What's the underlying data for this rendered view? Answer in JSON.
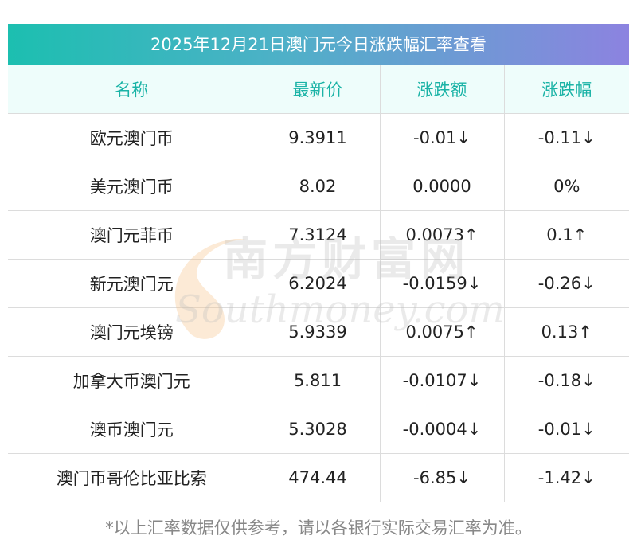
{
  "title": "2025年12月21日澳门元今日涨跌幅汇率查看",
  "columns": [
    "名称",
    "最新价",
    "涨跌额",
    "涨跌幅"
  ],
  "rows": [
    {
      "name": "欧元澳门币",
      "price": "9.3911",
      "change": "-0.01↓",
      "pct": "-0.11↓",
      "trend": "down"
    },
    {
      "name": "美元澳门币",
      "price": "8.02",
      "change": "0.0000",
      "pct": "0%",
      "trend": "flat"
    },
    {
      "name": "澳门元菲币",
      "price": "7.3124",
      "change": "0.0073↑",
      "pct": "0.1↑",
      "trend": "up"
    },
    {
      "name": "新元澳门元",
      "price": "6.2024",
      "change": "-0.0159↓",
      "pct": "-0.26↓",
      "trend": "down"
    },
    {
      "name": "澳门元埃镑",
      "price": "5.9339",
      "change": "0.0075↑",
      "pct": "0.13↑",
      "trend": "up"
    },
    {
      "name": "加拿大币澳门元",
      "price": "5.811",
      "change": "-0.0107↓",
      "pct": "-0.18↓",
      "trend": "down"
    },
    {
      "name": "澳币澳门元",
      "price": "5.3028",
      "change": "-0.0004↓",
      "pct": "-0.01↓",
      "trend": "down"
    },
    {
      "name": "澳门币哥伦比亚比索",
      "price": "474.44",
      "change": "-6.85↓",
      "pct": "-1.42↓",
      "trend": "down"
    }
  ],
  "watermark": {
    "cn": "南方财富网",
    "en": "Southmoney.com"
  },
  "footnote": "*以上汇率数据仅供参考，请以各银行实际交易汇率为准。",
  "colors": {
    "up": "#e02020",
    "down": "#13891d",
    "flat": "#222222",
    "header_text": "#1ab3a6",
    "header_bg": "#eefdfb"
  }
}
